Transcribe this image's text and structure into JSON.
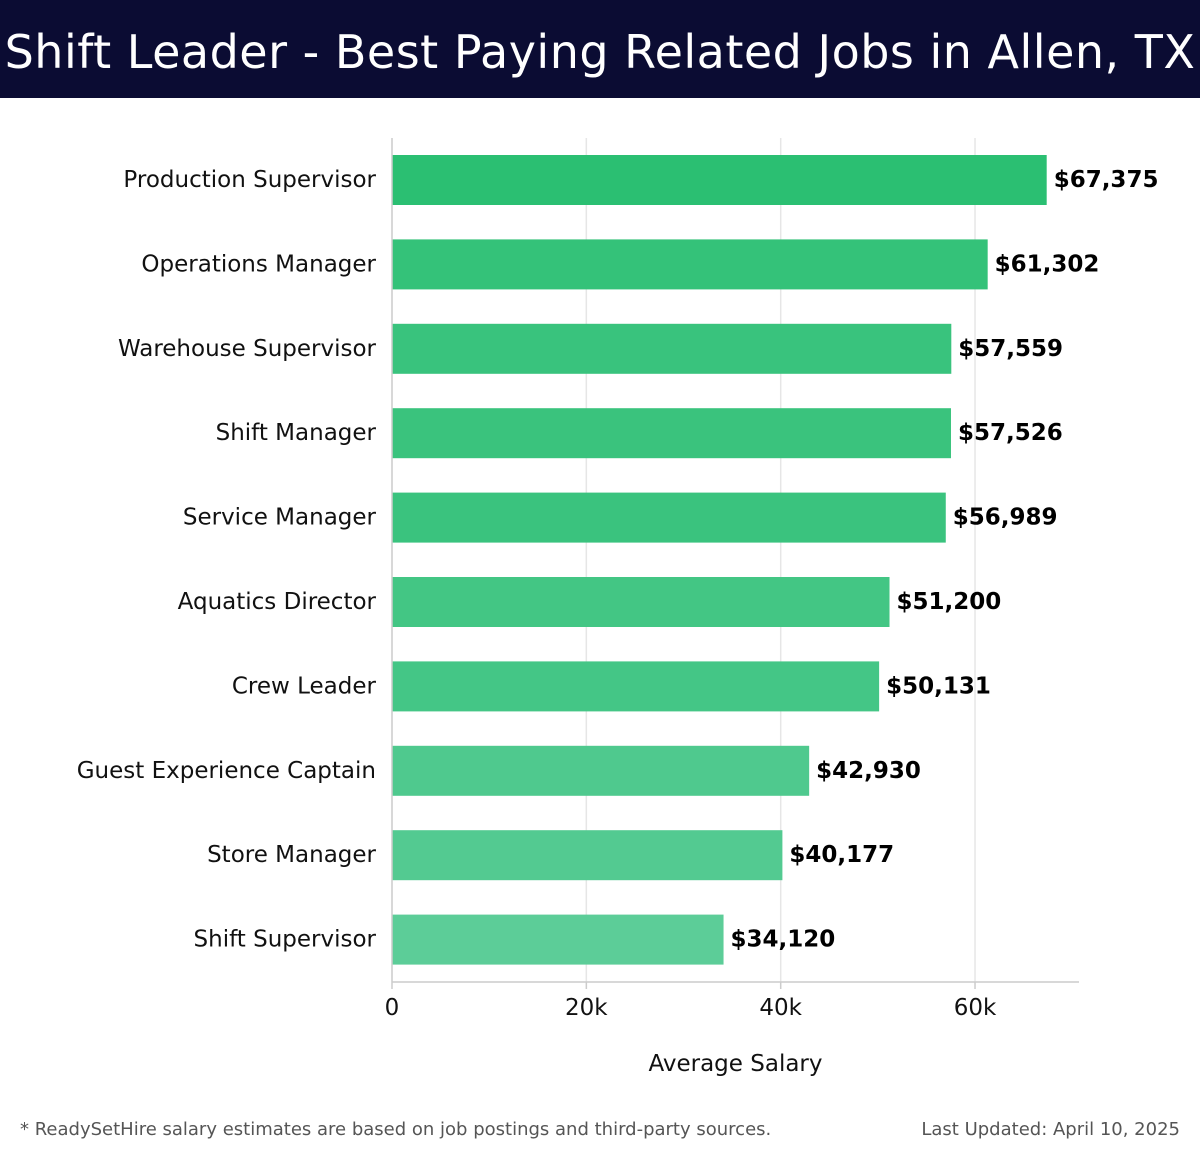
{
  "header": {
    "title": "Shift Leader - Best Paying Related Jobs in Allen, TX"
  },
  "chart_data": {
    "type": "bar",
    "orientation": "horizontal",
    "title": "Shift Leader - Best Paying Related Jobs in Allen, TX",
    "xlabel": "Average Salary",
    "ylabel": "",
    "categories": [
      "Production Supervisor",
      "Operations Manager",
      "Warehouse Supervisor",
      "Shift Manager",
      "Service Manager",
      "Aquatics Director",
      "Crew Leader",
      "Guest Experience Captain",
      "Store Manager",
      "Shift Supervisor"
    ],
    "values": [
      67375,
      61302,
      57559,
      57526,
      56989,
      51200,
      50131,
      42930,
      40177,
      34120
    ],
    "value_labels": [
      "$67,375",
      "$61,302",
      "$57,559",
      "$57,526",
      "$56,989",
      "$51,200",
      "$50,131",
      "$42,930",
      "$40,177",
      "$34,120"
    ],
    "xlim": [
      0,
      70700
    ],
    "xticks": [
      0,
      20000,
      40000,
      60000
    ],
    "xtick_labels": [
      "0",
      "20k",
      "40k",
      "60k"
    ],
    "grid": true,
    "colors": {
      "bar_max": "#2bbf72",
      "bar_min": "#5ccd98",
      "grid": "#e6e6e6",
      "axis": "#cccccc",
      "text": "#111111"
    }
  },
  "footer": {
    "note": "* ReadySetHire salary estimates are based on job postings and third-party sources.",
    "last_updated_label": "Last Updated: April 10, 2025"
  }
}
